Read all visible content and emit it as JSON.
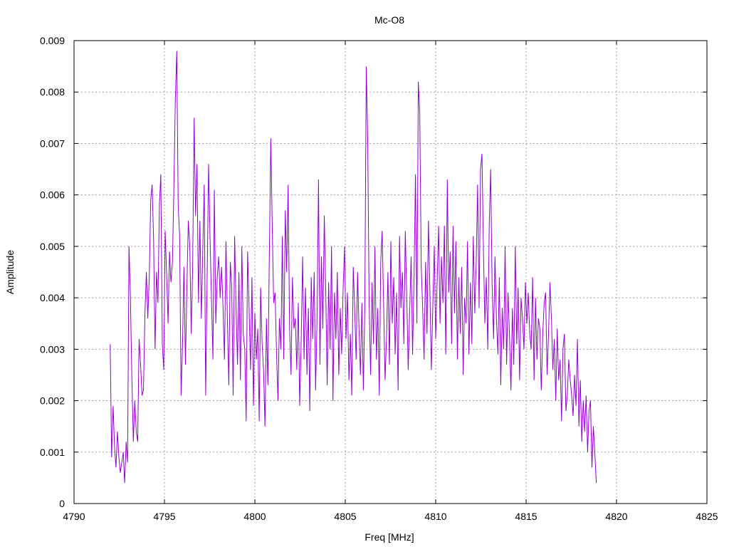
{
  "chart_data": {
    "type": "line",
    "title": "Mc-O8",
    "xlabel": "Freq [MHz]",
    "ylabel": "Amplitude",
    "xlim": [
      4790,
      4825
    ],
    "ylim": [
      0,
      0.009
    ],
    "xticks": [
      "4790",
      "4795",
      "4800",
      "4805",
      "4810",
      "4815",
      "4820",
      "4825"
    ],
    "yticks": [
      "0",
      "0.001",
      "0.002",
      "0.003",
      "0.004",
      "0.005",
      "0.006",
      "0.007",
      "0.008",
      "0.009"
    ],
    "grid": true,
    "series_color": "#9400d3",
    "series": [
      {
        "x_start": 4792.0,
        "x_step": 0.08,
        "values": [
          0.0031,
          0.0009,
          0.0019,
          0.0011,
          0.0007,
          0.0014,
          0.0009,
          0.0006,
          0.0008,
          0.001,
          0.0004,
          0.0012,
          0.0008,
          0.005,
          0.004,
          0.0024,
          0.0012,
          0.002,
          0.0014,
          0.0012,
          0.0032,
          0.0027,
          0.0021,
          0.0022,
          0.0037,
          0.0045,
          0.0036,
          0.0044,
          0.0059,
          0.0062,
          0.0051,
          0.003,
          0.0045,
          0.0039,
          0.0058,
          0.0064,
          0.0031,
          0.0026,
          0.0053,
          0.0045,
          0.0035,
          0.0049,
          0.0043,
          0.0047,
          0.0061,
          0.0078,
          0.0088,
          0.0058,
          0.0052,
          0.0021,
          0.0031,
          0.0046,
          0.0027,
          0.0042,
          0.0055,
          0.005,
          0.0033,
          0.0046,
          0.0075,
          0.0056,
          0.0066,
          0.0039,
          0.0055,
          0.0036,
          0.0049,
          0.0062,
          0.0021,
          0.0043,
          0.0066,
          0.0052,
          0.004,
          0.0028,
          0.0061,
          0.0035,
          0.0044,
          0.0048,
          0.004,
          0.0046,
          0.0038,
          0.0028,
          0.0051,
          0.0036,
          0.0023,
          0.0047,
          0.0042,
          0.0021,
          0.0052,
          0.0038,
          0.0027,
          0.0045,
          0.0024,
          0.005,
          0.0033,
          0.003,
          0.0016,
          0.0049,
          0.0038,
          0.0026,
          0.0044,
          0.0019,
          0.0037,
          0.0028,
          0.0034,
          0.0016,
          0.0042,
          0.0031,
          0.0026,
          0.0015,
          0.0036,
          0.0023,
          0.0048,
          0.0071,
          0.0054,
          0.0039,
          0.0041,
          0.0029,
          0.002,
          0.0036,
          0.003,
          0.0052,
          0.0028,
          0.0057,
          0.0045,
          0.0062,
          0.0034,
          0.0025,
          0.0044,
          0.0034,
          0.0036,
          0.0026,
          0.0039,
          0.0019,
          0.0031,
          0.0048,
          0.0028,
          0.0042,
          0.0025,
          0.0038,
          0.0018,
          0.0044,
          0.0032,
          0.0045,
          0.0022,
          0.0036,
          0.0063,
          0.0027,
          0.0048,
          0.0034,
          0.0056,
          0.0041,
          0.0023,
          0.0043,
          0.003,
          0.005,
          0.002,
          0.0041,
          0.0032,
          0.0045,
          0.0025,
          0.0038,
          0.0029,
          0.0042,
          0.005,
          0.0032,
          0.0041,
          0.0024,
          0.0033,
          0.0021,
          0.0046,
          0.0038,
          0.0028,
          0.0045,
          0.0034,
          0.0025,
          0.0039,
          0.0022,
          0.0038,
          0.0085,
          0.0071,
          0.0039,
          0.0025,
          0.0043,
          0.0031,
          0.005,
          0.0028,
          0.0038,
          0.0021,
          0.0047,
          0.0053,
          0.0039,
          0.0024,
          0.0032,
          0.0045,
          0.0027,
          0.0051,
          0.0035,
          0.0044,
          0.0029,
          0.0041,
          0.0022,
          0.0052,
          0.0038,
          0.0045,
          0.0031,
          0.0053,
          0.004,
          0.0026,
          0.0037,
          0.0048,
          0.0029,
          0.0043,
          0.0064,
          0.0035,
          0.0082,
          0.0076,
          0.0046,
          0.0038,
          0.0028,
          0.0047,
          0.0033,
          0.0055,
          0.0041,
          0.0026,
          0.0038,
          0.005,
          0.0032,
          0.0043,
          0.0054,
          0.0035,
          0.0048,
          0.0039,
          0.0054,
          0.0029,
          0.0063,
          0.0041,
          0.0049,
          0.0031,
          0.0054,
          0.0037,
          0.0051,
          0.0028,
          0.0044,
          0.0033,
          0.0046,
          0.0025,
          0.004,
          0.0035,
          0.0051,
          0.0029,
          0.0043,
          0.0031,
          0.0052,
          0.0037,
          0.0047,
          0.0062,
          0.0038,
          0.0065,
          0.0068,
          0.0049,
          0.0035,
          0.0044,
          0.003,
          0.0054,
          0.0065,
          0.0043,
          0.0032,
          0.0048,
          0.0036,
          0.0029,
          0.0044,
          0.0023,
          0.0038,
          0.003,
          0.005,
          0.0027,
          0.0041,
          0.0033,
          0.0022,
          0.0038,
          0.0027,
          0.005,
          0.0031,
          0.0042,
          0.0024,
          0.004,
          0.0036,
          0.003,
          0.0043,
          0.0035,
          0.0041,
          0.0033,
          0.003,
          0.0044,
          0.0024,
          0.004,
          0.0028,
          0.0036,
          0.0034,
          0.0022,
          0.0033,
          0.0039,
          0.0041,
          0.0025,
          0.0033,
          0.0043,
          0.0036,
          0.0026,
          0.0032,
          0.002,
          0.0034,
          0.0024,
          0.0028,
          0.0016,
          0.003,
          0.0033,
          0.0018,
          0.0021,
          0.0028,
          0.0024,
          0.0021,
          0.0017,
          0.0025,
          0.0019,
          0.0032,
          0.0015,
          0.0024,
          0.0012,
          0.002,
          0.0014,
          0.0021,
          0.001,
          0.0018,
          0.002,
          0.0007,
          0.0015,
          0.001,
          0.0004
        ]
      }
    ]
  }
}
